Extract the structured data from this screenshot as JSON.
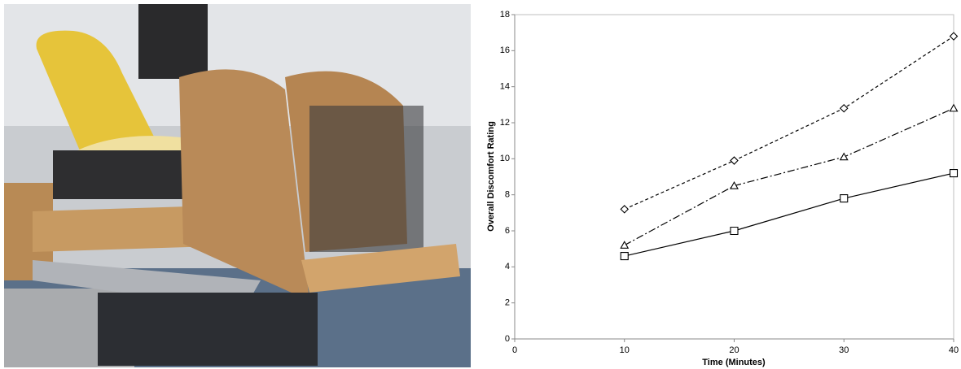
{
  "chart_data": {
    "type": "line",
    "xlabel": "Time (Minutes)",
    "ylabel": "Overall Discomfort Rating",
    "x": [
      10,
      20,
      30,
      40
    ],
    "series": [
      {
        "color": "#000000",
        "marker": "diamond",
        "dash": "dashed",
        "values": [
          7.2,
          9.9,
          12.8,
          16.8
        ]
      },
      {
        "color": "#000000",
        "marker": "triangle",
        "dash": "dashdot",
        "values": [
          5.2,
          8.5,
          10.1,
          12.8
        ]
      },
      {
        "color": "#000000",
        "marker": "square",
        "dash": "solid",
        "values": [
          4.6,
          6.0,
          7.8,
          9.2
        ]
      }
    ],
    "xlim": [
      0,
      40
    ],
    "xticks": [
      0,
      10,
      20,
      30,
      40
    ],
    "ylim": [
      0,
      18
    ],
    "yticks": [
      0,
      2,
      4,
      6,
      8,
      10,
      12,
      14,
      16,
      18
    ],
    "grid": false
  }
}
